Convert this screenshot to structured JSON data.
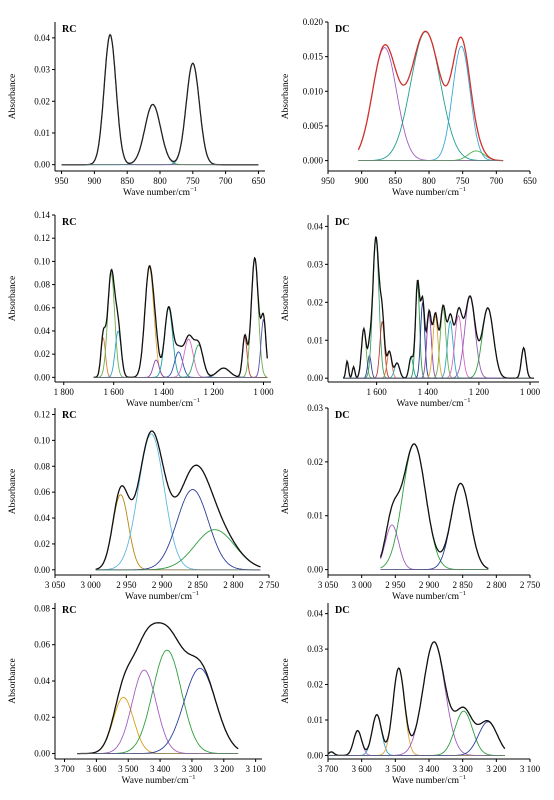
{
  "figure": {
    "background": "#ffffff",
    "axis_color": "#000000"
  },
  "chart_data": [
    {
      "type": "line",
      "title": "RC",
      "xlabel": "Wave number/cm",
      "xlabel_sup": "−1",
      "ylabel": "Absorbance",
      "xlim": [
        960,
        640
      ],
      "ylim": [
        -0.002,
        0.045
      ],
      "xticks": [
        950,
        900,
        850,
        800,
        750,
        700,
        650
      ],
      "yticks": [
        0.0,
        0.01,
        0.02,
        0.03,
        0.04
      ],
      "ytick_labels": [
        "0.00",
        "0.01",
        "0.02",
        "0.03",
        "0.04"
      ],
      "x_range": [
        950,
        650
      ],
      "total": {
        "name": "",
        "color": "#222222"
      },
      "peaks": [
        {
          "center": 876,
          "height": 0.041,
          "width": 9.0,
          "color": "#8e44ad"
        },
        {
          "center": 811,
          "height": 0.019,
          "width": 12.0,
          "color": "#2e9e3f"
        },
        {
          "center": 750,
          "height": 0.032,
          "width": 10.0,
          "color": "#2c6fb8"
        }
      ]
    },
    {
      "type": "line",
      "title": "DC",
      "xlabel": "Wave number/cm",
      "xlabel_sup": "−1",
      "ylabel": "Absorbance",
      "xlim": [
        950,
        650
      ],
      "ylim": [
        -0.0015,
        0.02
      ],
      "xticks": [
        950,
        900,
        850,
        800,
        750,
        700,
        650
      ],
      "yticks": [
        0.0,
        0.005,
        0.01,
        0.015,
        0.02
      ],
      "ytick_labels": [
        "0.000",
        "0.005",
        "0.010",
        "0.015",
        "0.020"
      ],
      "x_range": [
        905,
        690
      ],
      "total": {
        "name": "",
        "color": "#d0312d"
      },
      "peaks": [
        {
          "center": 866,
          "height": 0.0163,
          "width": 18.0,
          "color": "#a05fc0"
        },
        {
          "center": 805,
          "height": 0.0186,
          "width": 22.0,
          "color": "#1f9e8e"
        },
        {
          "center": 752,
          "height": 0.0165,
          "width": 13.0,
          "color": "#3aa7d8"
        },
        {
          "center": 730,
          "height": 0.0014,
          "width": 12.0,
          "color": "#4caf50"
        }
      ]
    },
    {
      "type": "line",
      "title": "RC",
      "xlabel": "Wave number/cm",
      "xlabel_sup": "−1",
      "ylabel": "Absorbance",
      "xlim": [
        1835,
        970
      ],
      "ylim": [
        -0.004,
        0.14
      ],
      "xticks": [
        1800,
        1600,
        1400,
        1200,
        1000
      ],
      "xtick_labels": [
        "1 800",
        "1 600",
        "1 400",
        "1 200",
        "1 000"
      ],
      "yticks": [
        0.0,
        0.02,
        0.04,
        0.06,
        0.08,
        0.1,
        0.12,
        0.14
      ],
      "ytick_labels": [
        "0.00",
        "0.02",
        "0.04",
        "0.06",
        "0.08",
        "0.10",
        "0.12",
        "0.14"
      ],
      "x_range": [
        1680,
        985
      ],
      "total": {
        "name": "",
        "color": "#111111"
      },
      "peaks": [
        {
          "center": 1642,
          "height": 0.034,
          "width": 9.0,
          "color": "#e07b39"
        },
        {
          "center": 1610,
          "height": 0.09,
          "width": 14.0,
          "color": "#6ab04c"
        },
        {
          "center": 1582,
          "height": 0.04,
          "width": 12.0,
          "color": "#2ea7c4"
        },
        {
          "center": 1457,
          "height": 0.095,
          "width": 18.0,
          "color": "#e6a23c"
        },
        {
          "center": 1430,
          "height": 0.015,
          "width": 12.0,
          "color": "#8e44ad"
        },
        {
          "center": 1380,
          "height": 0.06,
          "width": 16.0,
          "color": "#1aa3a3"
        },
        {
          "center": 1340,
          "height": 0.022,
          "width": 16.0,
          "color": "#2f4fb5"
        },
        {
          "center": 1300,
          "height": 0.033,
          "width": 18.0,
          "color": "#d66cc4"
        },
        {
          "center": 1260,
          "height": 0.028,
          "width": 18.0,
          "color": "#38a169"
        },
        {
          "center": 1160,
          "height": 0.008,
          "width": 25.0,
          "color": "#2c3e99"
        },
        {
          "center": 1075,
          "height": 0.035,
          "width": 9.0,
          "color": "#c0392b"
        },
        {
          "center": 1035,
          "height": 0.103,
          "width": 14.0,
          "color": "#6ab04c"
        },
        {
          "center": 1000,
          "height": 0.05,
          "width": 10.0,
          "color": "#5b4bb5"
        }
      ]
    },
    {
      "type": "line",
      "title": "DC",
      "xlabel": "Wave number/cm",
      "xlabel_sup": "−1",
      "ylabel": "Absorbance",
      "xlim": [
        1790,
        965
      ],
      "ylim": [
        -0.001,
        0.043
      ],
      "xticks": [
        1600,
        1400,
        1200,
        1000
      ],
      "xtick_labels": [
        "1 600",
        "1 400",
        "1 200",
        "1 000"
      ],
      "yticks": [
        0.0,
        0.01,
        0.02,
        0.03,
        0.04
      ],
      "ytick_labels": [
        "0.00",
        "0.01",
        "0.02",
        "0.03",
        "0.04"
      ],
      "x_range": [
        1730,
        985
      ],
      "total": {
        "name": "",
        "color": "#111111"
      },
      "peaks": [
        {
          "center": 1715,
          "height": 0.0045,
          "width": 5.0,
          "color": "#2ea7c4"
        },
        {
          "center": 1690,
          "height": 0.003,
          "width": 5.0,
          "color": "#8e44ad"
        },
        {
          "center": 1650,
          "height": 0.013,
          "width": 9.0,
          "color": "#6ab04c"
        },
        {
          "center": 1628,
          "height": 0.006,
          "width": 7.0,
          "color": "#3a3a9a"
        },
        {
          "center": 1603,
          "height": 0.037,
          "width": 12.0,
          "color": "#38a169"
        },
        {
          "center": 1578,
          "height": 0.015,
          "width": 9.0,
          "color": "#c0392b"
        },
        {
          "center": 1550,
          "height": 0.007,
          "width": 9.0,
          "color": "#e07b39"
        },
        {
          "center": 1520,
          "height": 0.004,
          "width": 10.0,
          "color": "#2ea7c4"
        },
        {
          "center": 1465,
          "height": 0.0055,
          "width": 8.0,
          "color": "#1aa3a3"
        },
        {
          "center": 1440,
          "height": 0.025,
          "width": 8.0,
          "color": "#2e9e3f"
        },
        {
          "center": 1420,
          "height": 0.02,
          "width": 8.0,
          "color": "#1f3a93"
        },
        {
          "center": 1395,
          "height": 0.017,
          "width": 9.0,
          "color": "#8e44ad"
        },
        {
          "center": 1370,
          "height": 0.0165,
          "width": 10.0,
          "color": "#e6a23c"
        },
        {
          "center": 1340,
          "height": 0.0185,
          "width": 11.0,
          "color": "#6ab04c"
        },
        {
          "center": 1312,
          "height": 0.015,
          "width": 11.0,
          "color": "#2ea7c4"
        },
        {
          "center": 1280,
          "height": 0.0165,
          "width": 14.0,
          "color": "#d66cc4"
        },
        {
          "center": 1235,
          "height": 0.0215,
          "width": 20.0,
          "color": "#9b59b6"
        },
        {
          "center": 1165,
          "height": 0.0185,
          "width": 22.0,
          "color": "#2e9e3f"
        },
        {
          "center": 1025,
          "height": 0.008,
          "width": 9.0,
          "color": "#5b4bb5"
        }
      ]
    },
    {
      "type": "line",
      "title": "RC",
      "xlabel": "Wave number/cm",
      "xlabel_sup": "−1",
      "ylabel": "Absorbance",
      "xlim": [
        3050,
        2750
      ],
      "ylim": [
        -0.004,
        0.125
      ],
      "xticks": [
        3050,
        3000,
        2950,
        2900,
        2850,
        2800,
        2750
      ],
      "xtick_labels": [
        "3 050",
        "3 000",
        "2 950",
        "2 900",
        "2 850",
        "2 800",
        "2 750"
      ],
      "yticks": [
        0.0,
        0.02,
        0.04,
        0.06,
        0.08,
        0.1,
        0.12
      ],
      "ytick_labels": [
        "0.00",
        "0.02",
        "0.04",
        "0.06",
        "0.08",
        "0.10",
        "0.12"
      ],
      "x_range": [
        2993,
        2762
      ],
      "total": {
        "name": "",
        "color": "#111111"
      },
      "peaks": [
        {
          "center": 2958,
          "height": 0.058,
          "width": 11.0,
          "color": "#b8860b"
        },
        {
          "center": 2915,
          "height": 0.105,
          "width": 18.0,
          "color": "#5fb8e0"
        },
        {
          "center": 2857,
          "height": 0.062,
          "width": 22.0,
          "color": "#2c3e99"
        },
        {
          "center": 2826,
          "height": 0.031,
          "width": 28.0,
          "color": "#2e9e3f"
        }
      ]
    },
    {
      "type": "line",
      "title": "DC",
      "xlabel": "Wave number/cm",
      "xlabel_sup": "−1",
      "ylabel": "Absorbance",
      "xlim": [
        3050,
        2750
      ],
      "ylim": [
        -0.001,
        0.03
      ],
      "xticks": [
        3050,
        3000,
        2950,
        2900,
        2850,
        2800,
        2750
      ],
      "xtick_labels": [
        "3 050",
        "3 000",
        "2 950",
        "2 900",
        "2 850",
        "2 800",
        "2 750"
      ],
      "yticks": [
        0.0,
        0.01,
        0.02,
        0.03
      ],
      "ytick_labels": [
        "0.00",
        "0.01",
        "0.02",
        "0.03"
      ],
      "x_range": [
        2972,
        2812
      ],
      "total": {
        "name": "",
        "color": "#111111"
      },
      "peaks": [
        {
          "center": 2955,
          "height": 0.0083,
          "width": 10.0,
          "color": "#a05fc0"
        },
        {
          "center": 2922,
          "height": 0.0233,
          "width": 17.0,
          "color": "#2e9e3f"
        },
        {
          "center": 2853,
          "height": 0.016,
          "width": 14.0,
          "color": "#2c3e99"
        }
      ]
    },
    {
      "type": "line",
      "title": "RC",
      "xlabel": "Wave number/cm",
      "xlabel_sup": "−1",
      "ylabel": "Absorbance",
      "xlim": [
        3730,
        3080
      ],
      "ylim": [
        -0.003,
        0.083
      ],
      "xticks": [
        3700,
        3600,
        3500,
        3400,
        3300,
        3200,
        3100
      ],
      "xtick_labels": [
        "3 700",
        "3 600",
        "3 500",
        "3 400",
        "3 300",
        "3 200",
        "3 100"
      ],
      "yticks": [
        0.0,
        0.02,
        0.04,
        0.06,
        0.08
      ],
      "ytick_labels": [
        "0.00",
        "0.02",
        "0.04",
        "0.06",
        "0.08"
      ],
      "x_range": [
        3660,
        3155
      ],
      "total": {
        "name": "",
        "color": "#111111"
      },
      "peaks": [
        {
          "center": 3515,
          "height": 0.031,
          "width": 32.0,
          "color": "#d4a017"
        },
        {
          "center": 3450,
          "height": 0.046,
          "width": 38.0,
          "color": "#a05fc0"
        },
        {
          "center": 3378,
          "height": 0.057,
          "width": 45.0,
          "color": "#2e9e3f"
        },
        {
          "center": 3275,
          "height": 0.047,
          "width": 50.0,
          "color": "#2c3e99"
        }
      ]
    },
    {
      "type": "line",
      "title": "DC",
      "xlabel": "Wave number/cm",
      "xlabel_sup": "−1",
      "ylabel": "Absorbance",
      "xlim": [
        3700,
        3100
      ],
      "ylim": [
        -0.001,
        0.043
      ],
      "xticks": [
        3700,
        3600,
        3500,
        3400,
        3300,
        3200,
        3100
      ],
      "xtick_labels": [
        "3 700",
        "3 600",
        "3 500",
        "3 400",
        "3 300",
        "3 200",
        "3 100"
      ],
      "yticks": [
        0.0,
        0.01,
        0.02,
        0.03,
        0.04
      ],
      "ytick_labels": [
        "0.00",
        "0.01",
        "0.02",
        "0.03",
        "0.04"
      ],
      "x_range": [
        3700,
        3175
      ],
      "total": {
        "name": "",
        "color": "#111111"
      },
      "peaks": [
        {
          "center": 3690,
          "height": 0.001,
          "width": 8.0,
          "color": "#2ea7c4"
        },
        {
          "center": 3612,
          "height": 0.007,
          "width": 12.0,
          "color": "#d66cc4"
        },
        {
          "center": 3555,
          "height": 0.0115,
          "width": 14.0,
          "color": "#2ea7c4"
        },
        {
          "center": 3490,
          "height": 0.0245,
          "width": 17.0,
          "color": "#e6a23c"
        },
        {
          "center": 3385,
          "height": 0.032,
          "width": 32.0,
          "color": "#a05fc0"
        },
        {
          "center": 3297,
          "height": 0.0125,
          "width": 26.0,
          "color": "#2e9e3f"
        },
        {
          "center": 3225,
          "height": 0.0095,
          "width": 28.0,
          "color": "#2c3e99"
        }
      ]
    }
  ]
}
